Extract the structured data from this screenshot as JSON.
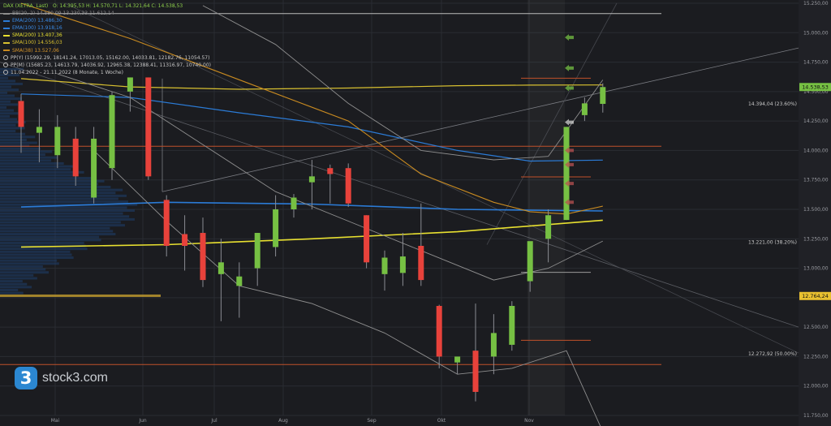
{
  "legend": {
    "title": "DAX (XETRA, Last)",
    "ohlc": "O: 14.395,53  H: 14.570,71  L: 14.321,64  C: 14.538,53",
    "items": [
      {
        "label": "BB(20, 2)  14.599,09  13.230,33  11.612,14",
        "color": "#8e8e8e"
      },
      {
        "label": "EMA(200)  13.486,30",
        "color": "#2b7bd6"
      },
      {
        "label": "EMA(100)  13.918,16",
        "color": "#2b7bd6"
      },
      {
        "label": "SMA(200)  13.407,36",
        "color": "#e8e030"
      },
      {
        "label": "SMA(100)  14.556,03",
        "color": "#d8c030"
      },
      {
        "label": "SMA(38)  13.527,06",
        "color": "#c88a20"
      }
    ],
    "pivots": [
      "PP(Y)  (15992.29, 18141.24, 17013.05, 15162.00, 14033.81, 12182.76, 11054.57)",
      "PP(M)  (15685.23, 14613.79, 14036.92, 12965.38, 12388.41, 11316.97, 10740.00)"
    ],
    "range": "11.04.2022 - 21.11.2022  (8 Monate, 1 Woche)"
  },
  "logo": {
    "mark": "3",
    "text": "stock3.com"
  },
  "colors": {
    "up": "#76c043",
    "down": "#e8423b",
    "ema": "#2b7bd6",
    "sma200": "#e8e030",
    "sma100": "#d8c030",
    "sma38": "#c88a20",
    "bb": "#8e8e8e",
    "pivot": "#c0502a",
    "grid": "#2a2c32",
    "text": "#9a9ca2",
    "highlight": "#c69f2e"
  },
  "chart_data": {
    "type": "candlestick",
    "title": "DAX (XETRA, Last)",
    "x_ticks": [
      "Mai",
      "Jun",
      "Jul",
      "Aug",
      "Sep",
      "Okt",
      "Nov"
    ],
    "y_ticks": [
      "15.250,00",
      "15.000,00",
      "14.750,00",
      "14.500,00",
      "14.250,00",
      "14.000,00",
      "13.750,00",
      "13.500,00",
      "13.250,00",
      "13.000,00",
      "12.750,00",
      "12.500,00",
      "12.250,00",
      "12.000,00",
      "11.750,00"
    ],
    "y_tick_values": [
      15250,
      15000,
      14750,
      14500,
      14250,
      14000,
      13750,
      13500,
      13250,
      13000,
      12750,
      12500,
      12250,
      12000,
      11750
    ],
    "ylim": [
      11750,
      15250
    ],
    "candles": [
      {
        "o": 14420,
        "h": 14480,
        "l": 13980,
        "c": 14200
      },
      {
        "o": 14150,
        "h": 14350,
        "l": 13900,
        "c": 14200
      },
      {
        "o": 13960,
        "h": 14300,
        "l": 13850,
        "c": 14200
      },
      {
        "o": 14100,
        "h": 14200,
        "l": 13700,
        "c": 13780
      },
      {
        "o": 13600,
        "h": 14200,
        "l": 13550,
        "c": 14100
      },
      {
        "o": 13850,
        "h": 14500,
        "l": 13750,
        "c": 14470
      },
      {
        "o": 14500,
        "h": 14620,
        "l": 14330,
        "c": 14620
      },
      {
        "o": 14620,
        "h": 14620,
        "l": 13750,
        "c": 13780
      },
      {
        "o": 13580,
        "h": 13620,
        "l": 13100,
        "c": 13190
      },
      {
        "o": 13290,
        "h": 13450,
        "l": 12980,
        "c": 13190
      },
      {
        "o": 13300,
        "h": 13430,
        "l": 12840,
        "c": 12900
      },
      {
        "o": 12950,
        "h": 13250,
        "l": 12550,
        "c": 13050
      },
      {
        "o": 12850,
        "h": 13050,
        "l": 12580,
        "c": 12930
      },
      {
        "o": 13000,
        "h": 13300,
        "l": 12850,
        "c": 13300
      },
      {
        "o": 13180,
        "h": 13620,
        "l": 13100,
        "c": 13500
      },
      {
        "o": 13500,
        "h": 13630,
        "l": 13430,
        "c": 13600
      },
      {
        "o": 13730,
        "h": 13920,
        "l": 13500,
        "c": 13780
      },
      {
        "o": 13850,
        "h": 13880,
        "l": 13550,
        "c": 13800
      },
      {
        "o": 13850,
        "h": 13890,
        "l": 13520,
        "c": 13550
      },
      {
        "o": 13450,
        "h": 13450,
        "l": 13000,
        "c": 13050
      },
      {
        "o": 12950,
        "h": 13150,
        "l": 12810,
        "c": 13090
      },
      {
        "o": 12960,
        "h": 13300,
        "l": 12850,
        "c": 13100
      },
      {
        "o": 13190,
        "h": 13550,
        "l": 12850,
        "c": 12900
      },
      {
        "o": 12680,
        "h": 12690,
        "l": 12150,
        "c": 12250
      },
      {
        "o": 12200,
        "h": 12220,
        "l": 12100,
        "c": 12250
      },
      {
        "o": 12300,
        "h": 12700,
        "l": 11870,
        "c": 11950
      },
      {
        "o": 12250,
        "h": 12610,
        "l": 12100,
        "c": 12450
      },
      {
        "o": 12350,
        "h": 12720,
        "l": 12300,
        "c": 12680
      },
      {
        "o": 12890,
        "h": 13200,
        "l": 12800,
        "c": 13230
      },
      {
        "o": 13250,
        "h": 13500,
        "l": 13050,
        "c": 13450
      },
      {
        "o": 13410,
        "h": 14200,
        "l": 13410,
        "c": 14200
      },
      {
        "o": 14300,
        "h": 14450,
        "l": 14250,
        "c": 14400
      },
      {
        "o": 14395.53,
        "h": 14570.71,
        "l": 14321.64,
        "c": 14538.53
      }
    ],
    "lines": [
      {
        "name": "EMA(200)",
        "x": [
          0,
          8,
          16,
          24,
          32
        ],
        "y": [
          13520,
          13560,
          13545,
          13500,
          13486.3
        ]
      },
      {
        "name": "EMA(100)",
        "x": [
          0,
          6,
          12,
          18,
          24,
          28,
          32
        ],
        "y": [
          14480,
          14450,
          14320,
          14200,
          14000,
          13910,
          13918.16
        ]
      },
      {
        "name": "SMA(200)",
        "x": [
          0,
          8,
          16,
          24,
          32
        ],
        "y": [
          13180,
          13200,
          13250,
          13310,
          13407.36
        ]
      },
      {
        "name": "SMA(100)",
        "x": [
          0,
          6,
          12,
          18,
          24,
          28,
          32
        ],
        "y": [
          14610,
          14540,
          14520,
          14530,
          14550,
          14555,
          14556.03
        ]
      },
      {
        "name": "SMA(38)",
        "x": [
          0,
          6,
          12,
          18,
          22,
          26,
          28,
          30,
          32
        ],
        "y": [
          15250,
          14950,
          14600,
          14250,
          13800,
          13560,
          13480,
          13460,
          13527.06
        ]
      },
      {
        "name": "BB upper",
        "x": [
          10,
          14,
          18,
          22,
          26,
          29,
          32
        ],
        "y": [
          15230,
          14900,
          14400,
          14000,
          13920,
          13950,
          14599.09
        ]
      },
      {
        "name": "BB mid",
        "x": [
          2,
          6,
          10,
          14,
          18,
          22,
          26,
          29,
          32
        ],
        "y": [
          14650,
          14450,
          14050,
          13650,
          13400,
          13150,
          12900,
          13000,
          13230.33
        ]
      },
      {
        "name": "BB lower",
        "x": [
          4,
          8,
          12,
          16,
          20,
          24,
          27,
          30,
          32
        ],
        "y": [
          14000,
          13400,
          12850,
          12700,
          12450,
          12100,
          12150,
          12300,
          11612.14
        ]
      }
    ],
    "hlines": [
      {
        "name": "PP(Y) 15.162",
        "y": 15162,
        "color": "#bbbbbb"
      },
      {
        "name": "PP(M) 14.036",
        "y": 14036,
        "color": "#c0502a"
      },
      {
        "name": "PP(Y) 12.182",
        "y": 12182,
        "color": "#c0502a"
      }
    ],
    "short_hlines": [
      {
        "y": 14613.79,
        "color": "#c0502a"
      },
      {
        "y": 13776,
        "color": "#c0502a"
      },
      {
        "y": 12965.38,
        "color": "#9a9a9a"
      },
      {
        "y": 12388.41,
        "color": "#c0502a"
      }
    ],
    "labels": [
      {
        "text": "14.394,04 (23.60%)",
        "y": 14394.04
      },
      {
        "text": "13.221,00 (38.20%)",
        "y": 13221
      },
      {
        "text": "12.272,92 (50.00%)",
        "y": 12272.92
      }
    ],
    "axis_badges": [
      {
        "text": "14.538,53",
        "y": 14538.53,
        "color": "#76c043"
      },
      {
        "text": "12.764,24",
        "y": 12764.24,
        "color": "#e8c030"
      }
    ]
  }
}
